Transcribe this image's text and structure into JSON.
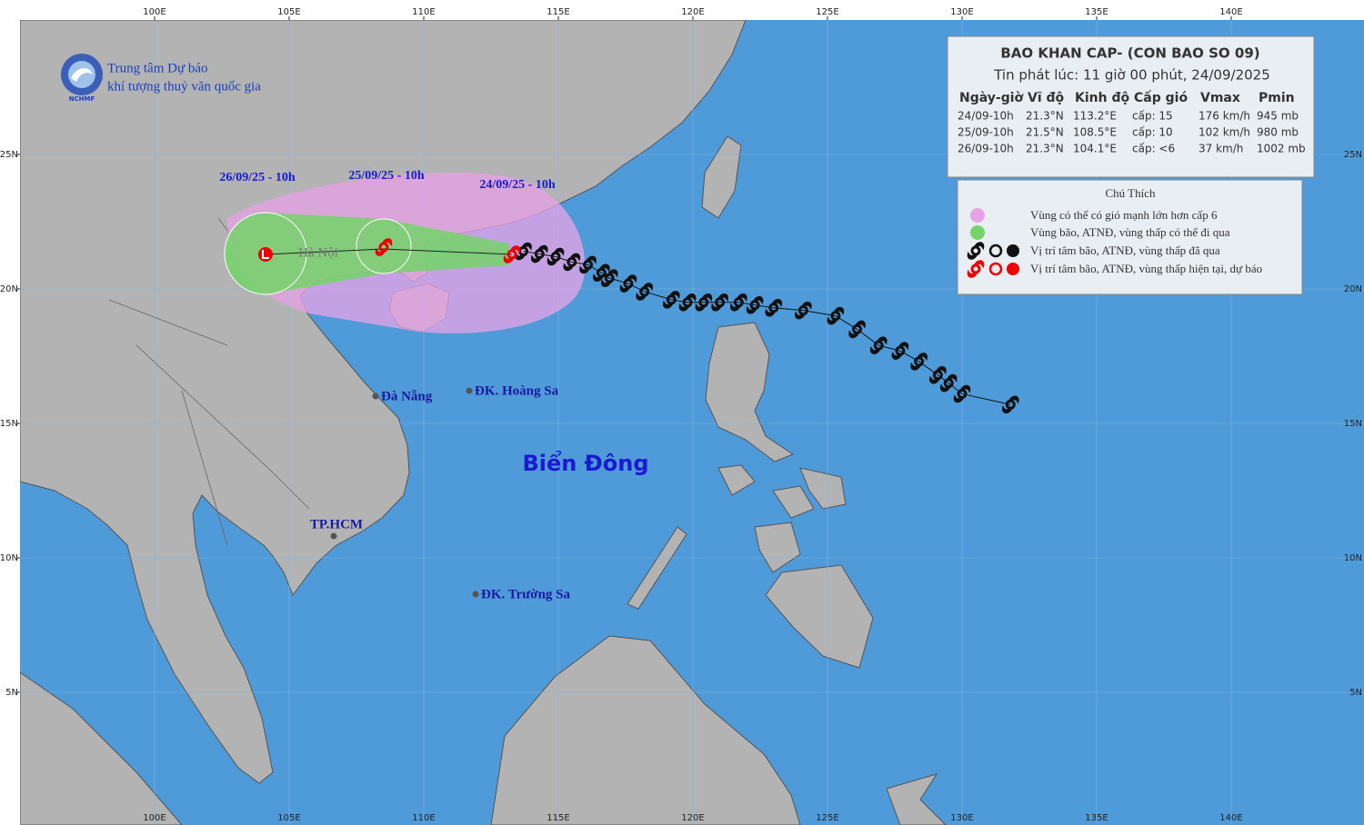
{
  "header": {
    "org_line1": "Trung tâm Dự báo",
    "org_line2": "khí tượng thuỷ văn quốc gia",
    "logo_text": "NCHMF"
  },
  "map": {
    "xlim": [
      95,
      145
    ],
    "ylim": [
      0,
      30
    ],
    "xticks": [
      {
        "value": 100,
        "label": "100E"
      },
      {
        "value": 105,
        "label": "105E"
      },
      {
        "value": 110,
        "label": "110E"
      },
      {
        "value": 115,
        "label": "115E"
      },
      {
        "value": 120,
        "label": "120E"
      },
      {
        "value": 125,
        "label": "125E"
      },
      {
        "value": 130,
        "label": "130E"
      },
      {
        "value": 135,
        "label": "135E"
      },
      {
        "value": 140,
        "label": "140E"
      }
    ],
    "yticks": [
      {
        "value": 5,
        "label": "5N"
      },
      {
        "value": 10,
        "label": "10N"
      },
      {
        "value": 15,
        "label": "15N"
      },
      {
        "value": 20,
        "label": "20N"
      },
      {
        "value": 25,
        "label": "25N"
      }
    ],
    "places": {
      "hanoi": "Hà Nội",
      "danang": "Đà Nẵng",
      "hoangsa": "ĐK. Hoàng Sa",
      "truongsa": "ĐK. Trường Sa",
      "hcm": "TP.HCM",
      "sea": "Biển Đông"
    },
    "forecast_labels": [
      "26/09/25 - 10h",
      "25/09/25 - 10h",
      "24/09/25 - 10h"
    ],
    "past_track": [
      {
        "lat": 15.7,
        "lon": 131.8
      },
      {
        "lat": 16.1,
        "lon": 130.0
      },
      {
        "lat": 16.5,
        "lon": 129.5
      },
      {
        "lat": 16.8,
        "lon": 129.1
      },
      {
        "lat": 17.3,
        "lon": 128.4
      },
      {
        "lat": 17.7,
        "lon": 127.7
      },
      {
        "lat": 17.9,
        "lon": 126.9
      },
      {
        "lat": 18.5,
        "lon": 126.1
      },
      {
        "lat": 19.0,
        "lon": 125.3
      },
      {
        "lat": 19.2,
        "lon": 124.1
      },
      {
        "lat": 19.3,
        "lon": 123.0
      },
      {
        "lat": 19.4,
        "lon": 122.3
      },
      {
        "lat": 19.5,
        "lon": 121.7
      },
      {
        "lat": 19.5,
        "lon": 121.0
      },
      {
        "lat": 19.5,
        "lon": 120.4
      },
      {
        "lat": 19.5,
        "lon": 119.8
      },
      {
        "lat": 19.6,
        "lon": 119.2
      },
      {
        "lat": 19.9,
        "lon": 118.2
      },
      {
        "lat": 20.2,
        "lon": 117.6
      },
      {
        "lat": 20.4,
        "lon": 116.9
      },
      {
        "lat": 20.6,
        "lon": 116.6
      },
      {
        "lat": 20.9,
        "lon": 116.1
      },
      {
        "lat": 21.0,
        "lon": 115.5
      },
      {
        "lat": 21.2,
        "lon": 114.9
      },
      {
        "lat": 21.3,
        "lon": 114.3
      },
      {
        "lat": 21.4,
        "lon": 113.7
      }
    ]
  },
  "table": {
    "title": "BAO KHAN CAP- (CON BAO SO 09)",
    "subtitle": "Tin phát lúc: 11 giờ 00 phút, 24/09/2025",
    "columns": [
      "Ngày-giờ",
      "Vĩ độ",
      "Kinh độ",
      "Cấp gió",
      "Vmax",
      "Pmin"
    ],
    "rows": [
      [
        "24/09-10h",
        "21.3°N",
        "113.2°E",
        "cấp: 15",
        "176 km/h",
        "945 mb"
      ],
      [
        "25/09-10h",
        "21.5°N",
        "108.5°E",
        "cấp: 10",
        "102 km/h",
        "980 mb"
      ],
      [
        "26/09-10h",
        "21.3°N",
        "104.1°E",
        "cấp: <6",
        "37 km/h",
        "1002 mb"
      ]
    ]
  },
  "legend": {
    "title": "Chú Thích",
    "items": [
      "Vùng có thể có gió mạnh lớn hơn cấp 6",
      "Vùng bão, ATNĐ, vùng thấp có thể đi qua",
      "Vị trí tâm bão, ATNĐ, vùng thấp đã qua",
      "Vị trí tâm bão, ATNĐ, vùng thấp hiện tại, dự báo"
    ]
  }
}
